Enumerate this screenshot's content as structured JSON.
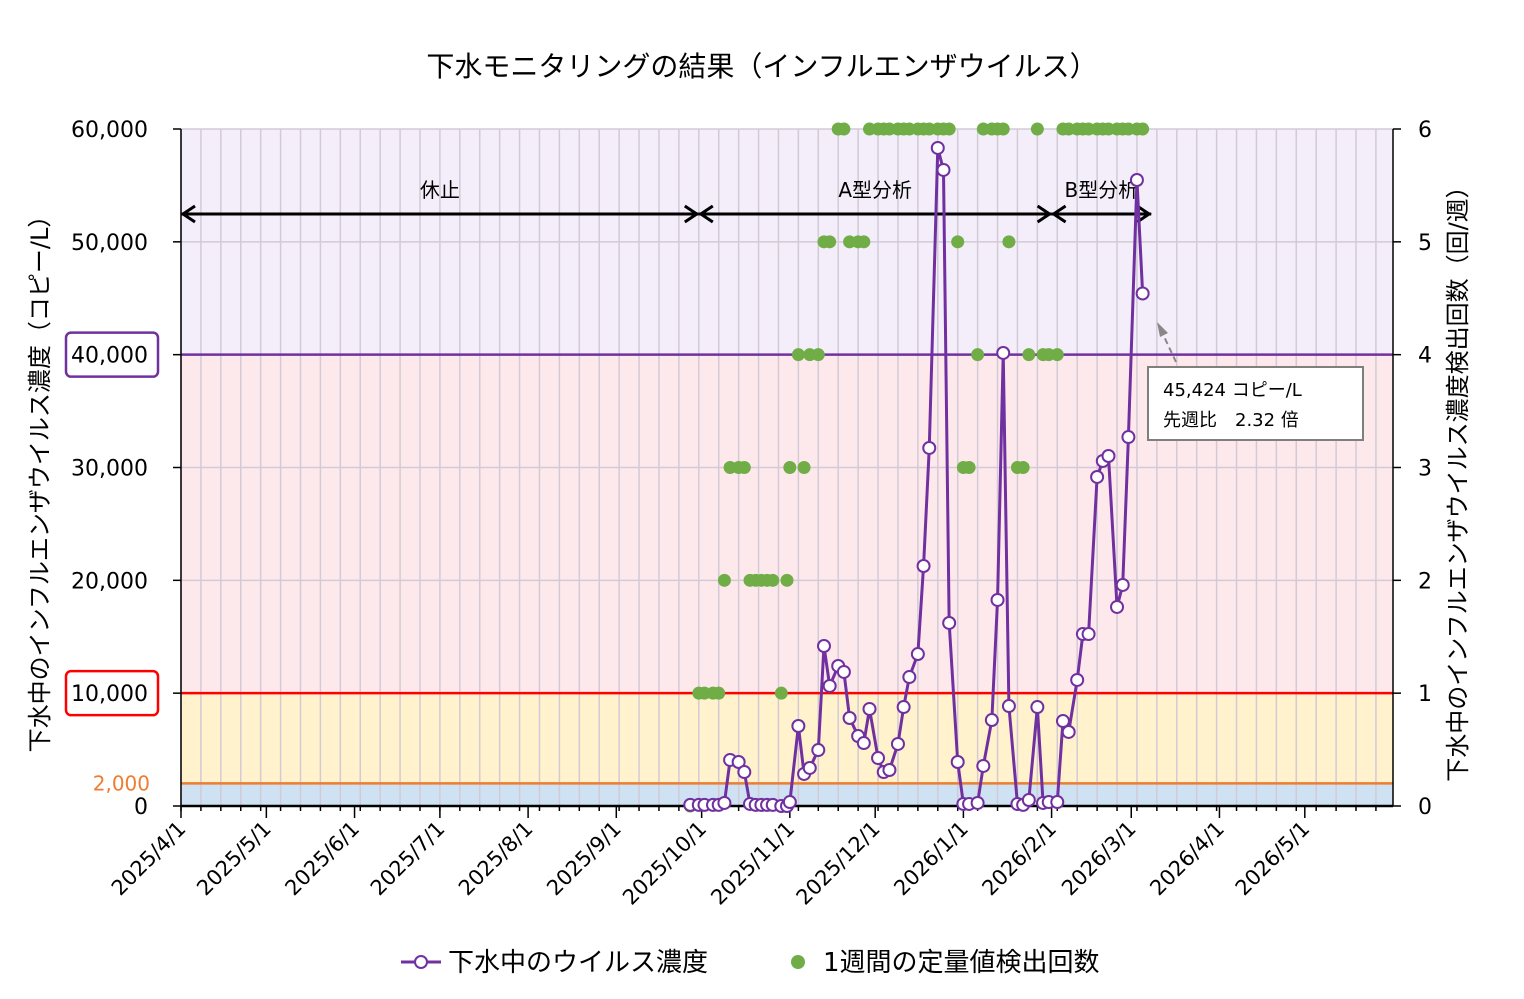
{
  "chart_data": {
    "type": "line",
    "title": "下水モニタリングの結果（インフルエンザウイルス）",
    "ylabel_left": "下水中のインフルエンザウイルス濃度（コピー/L）",
    "ylabel_right": "下水中のインフルエンザウイルス濃度検出回数（回/週）",
    "xlim": [
      "2025-04-01",
      "2026-06-01"
    ],
    "ylim_left": [
      0,
      60000
    ],
    "ylim_right": [
      0,
      6
    ],
    "grid": true,
    "x_tick_labels": [
      "2025/4/1",
      "2025/5/1",
      "2025/6/1",
      "2025/7/1",
      "2025/8/1",
      "2025/9/1",
      "2025/10/1",
      "2025/11/1",
      "2025/12/1",
      "2026/1/1",
      "2026/2/1",
      "2026/3/1",
      "2026/4/1",
      "2026/5/1"
    ],
    "x_tick_dates": [
      "2025-04-01",
      "2025-05-01",
      "2025-06-01",
      "2025-07-01",
      "2025-08-01",
      "2025-09-01",
      "2025-10-01",
      "2025-11-01",
      "2025-12-01",
      "2026-01-01",
      "2026-02-01",
      "2026-03-01",
      "2026-04-01",
      "2026-05-01"
    ],
    "y_left_ticks": [
      {
        "value": 0,
        "label": "0"
      },
      {
        "value": 10000,
        "label": "10,000",
        "boxed": "#ff0000"
      },
      {
        "value": 20000,
        "label": "20,000"
      },
      {
        "value": 30000,
        "label": "30,000"
      },
      {
        "value": 40000,
        "label": "40,000",
        "boxed": "#7030a0"
      },
      {
        "value": 50000,
        "label": "50,000"
      },
      {
        "value": 60000,
        "label": "60,000"
      }
    ],
    "y_left_extra_tick": {
      "value": 2000,
      "label": "2,000",
      "color": "#ed7d31"
    },
    "y_right_ticks": [
      "0",
      "1",
      "2",
      "3",
      "4",
      "5",
      "6"
    ],
    "bands": [
      {
        "from": 0,
        "to": 2000,
        "color": "#cfe2f3"
      },
      {
        "from": 2000,
        "to": 10000,
        "color": "#fff2cc"
      },
      {
        "from": 10000,
        "to": 40000,
        "color": "#fde9ec"
      },
      {
        "from": 40000,
        "to": 60000,
        "color": "#f3eef9"
      }
    ],
    "threshold_lines": [
      {
        "value": 2000,
        "color": "#ed7d31"
      },
      {
        "value": 10000,
        "color": "#ff0000"
      },
      {
        "value": 40000,
        "color": "#7030a0"
      }
    ],
    "periods": [
      {
        "label": "休止",
        "from": "2025-04-01",
        "to": "2025-09-30"
      },
      {
        "label": "A型分析",
        "from": "2025-09-30",
        "to": "2026-02-01"
      },
      {
        "label": "B型分析",
        "from": "2026-02-01",
        "to": "2026-03-08"
      }
    ],
    "annotation": {
      "line1": "45,424 コピー/L",
      "line2": "先週比　2.32 倍",
      "date": "2026-03-05"
    },
    "dates": [
      "2025-09-27",
      "2025-09-30",
      "2025-10-02",
      "2025-10-05",
      "2025-10-07",
      "2025-10-09",
      "2025-10-11",
      "2025-10-14",
      "2025-10-16",
      "2025-10-18",
      "2025-10-20",
      "2025-10-22",
      "2025-10-24",
      "2025-10-26",
      "2025-10-29",
      "2025-10-31",
      "2025-11-01",
      "2025-11-04",
      "2025-11-06",
      "2025-11-08",
      "2025-11-11",
      "2025-11-13",
      "2025-11-15",
      "2025-11-18",
      "2025-11-20",
      "2025-11-22",
      "2025-11-25",
      "2025-11-27",
      "2025-11-29",
      "2025-12-02",
      "2025-12-04",
      "2025-12-06",
      "2025-12-09",
      "2025-12-11",
      "2025-12-13",
      "2025-12-16",
      "2025-12-18",
      "2025-12-20",
      "2025-12-23",
      "2025-12-25",
      "2025-12-27",
      "2025-12-30",
      "2026-01-01",
      "2026-01-03",
      "2026-01-06",
      "2026-01-08",
      "2026-01-11",
      "2026-01-13",
      "2026-01-15",
      "2026-01-17",
      "2026-01-20",
      "2026-01-22",
      "2026-01-24",
      "2026-01-27",
      "2026-01-29",
      "2026-01-31",
      "2026-02-03",
      "2026-02-05",
      "2026-02-07",
      "2026-02-10",
      "2026-02-12",
      "2026-02-14",
      "2026-02-17",
      "2026-02-19",
      "2026-02-21",
      "2026-02-24",
      "2026-02-26",
      "2026-02-28",
      "2026-03-03",
      "2026-03-05"
    ],
    "series": [
      {
        "name": "下水中のウイルス濃度",
        "axis": "left",
        "color": "#7030a0",
        "values": [
          100,
          100,
          100,
          100,
          100,
          270,
          4080,
          3900,
          3010,
          180,
          100,
          100,
          100,
          100,
          0,
          0,
          350,
          7090,
          2840,
          3370,
          4960,
          14180,
          10640,
          12410,
          11880,
          7800,
          6200,
          5580,
          8600,
          4250,
          3010,
          3190,
          5500,
          8770,
          11430,
          13470,
          21270,
          31730,
          58320,
          56370,
          16220,
          3900,
          180,
          180,
          270,
          3550,
          7620,
          18260,
          40150,
          8860,
          180,
          100,
          530,
          8770,
          270,
          350,
          350,
          7530,
          6560,
          11170,
          15240,
          15240,
          29160,
          30580,
          31020,
          17640,
          19590,
          32700,
          55480,
          45424
        ]
      },
      {
        "name": "1週間の定量値検出回数",
        "axis": "right",
        "color": "#70ad47",
        "values": [
          0,
          1,
          1,
          1,
          1,
          2,
          3,
          3,
          3,
          2,
          2,
          2,
          2,
          2,
          1,
          2,
          3,
          4,
          3,
          4,
          4,
          5,
          5,
          6,
          6,
          5,
          5,
          5,
          6,
          6,
          6,
          6,
          6,
          6,
          6,
          6,
          6,
          6,
          6,
          6,
          6,
          5,
          3,
          3,
          4,
          6,
          6,
          6,
          6,
          5,
          3,
          3,
          4,
          6,
          4,
          4,
          4,
          6,
          6,
          6,
          6,
          6,
          6,
          6,
          6,
          6,
          6,
          6,
          6,
          6
        ]
      }
    ]
  }
}
